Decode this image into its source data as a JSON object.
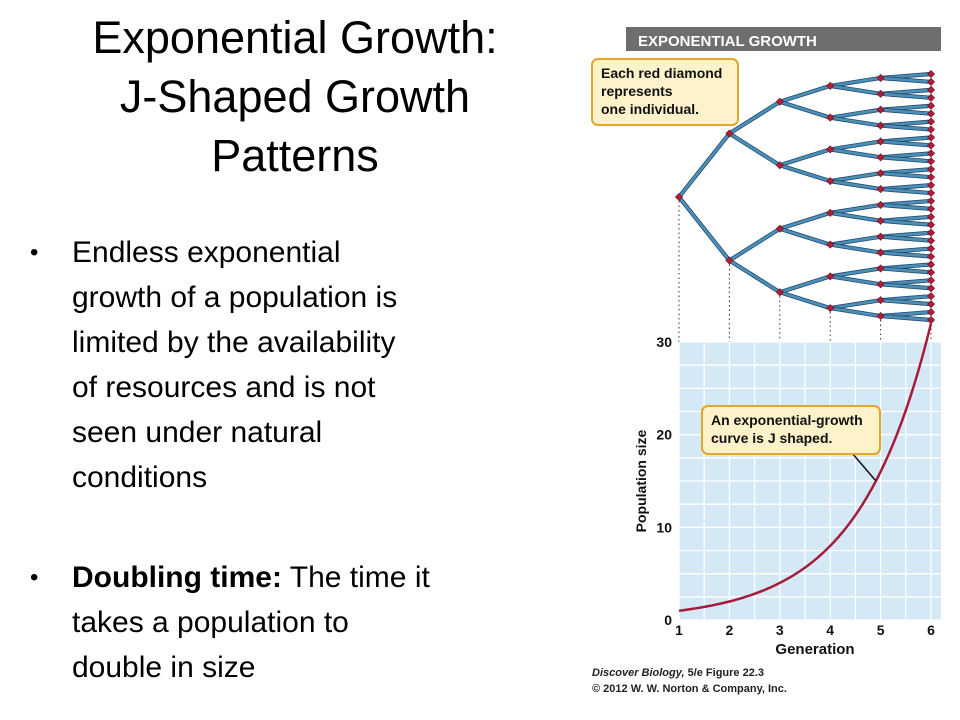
{
  "slide": {
    "title_lines": [
      "Exponential Growth:",
      "J-Shaped Growth",
      "Patterns"
    ],
    "bullets": [
      {
        "lines": [
          "Endless exponential",
          "growth of a population is",
          "limited by the availability",
          "of resources and is not",
          "seen under natural",
          "conditions"
        ]
      },
      {
        "bold": "Doubling time:",
        "rest_first": " The time it",
        "lines": [
          "takes a population to",
          "double in size"
        ]
      }
    ]
  },
  "figure": {
    "header": "EXPONENTIAL GROWTH",
    "callout_tree": [
      "Each red diamond",
      "represents",
      "one individual."
    ],
    "callout_curve": [
      "An exponential-growth",
      "curve is J shaped."
    ],
    "caption_book": "Discover Biology,",
    "caption_edition": " 5/e  Figure 22.3",
    "caption_copyright": "© 2012 W. W. Norton & Company, Inc.",
    "colors": {
      "header_bar": "#6d6e70",
      "branch": "#4d8fb5",
      "diamond": "#b01e3a",
      "plot_bg": "#d4e8f6",
      "callout_bg": "#fdf2c9",
      "callout_border": "#e1a62b"
    }
  },
  "chart_data": {
    "type": "line",
    "xlabel": "Generation",
    "ylabel": "Population size",
    "x": [
      1,
      2,
      3,
      4,
      5,
      6
    ],
    "x_ticks": [
      "1",
      "2",
      "3",
      "4",
      "5",
      "6"
    ],
    "y_ticks": [
      "0",
      "10",
      "20",
      "30"
    ],
    "ylim": [
      0,
      30
    ],
    "grid": true,
    "series": [
      {
        "x": [
          1,
          2,
          3,
          4,
          5,
          6
        ],
        "values": [
          1,
          2,
          4,
          8,
          16,
          32
        ]
      }
    ]
  }
}
